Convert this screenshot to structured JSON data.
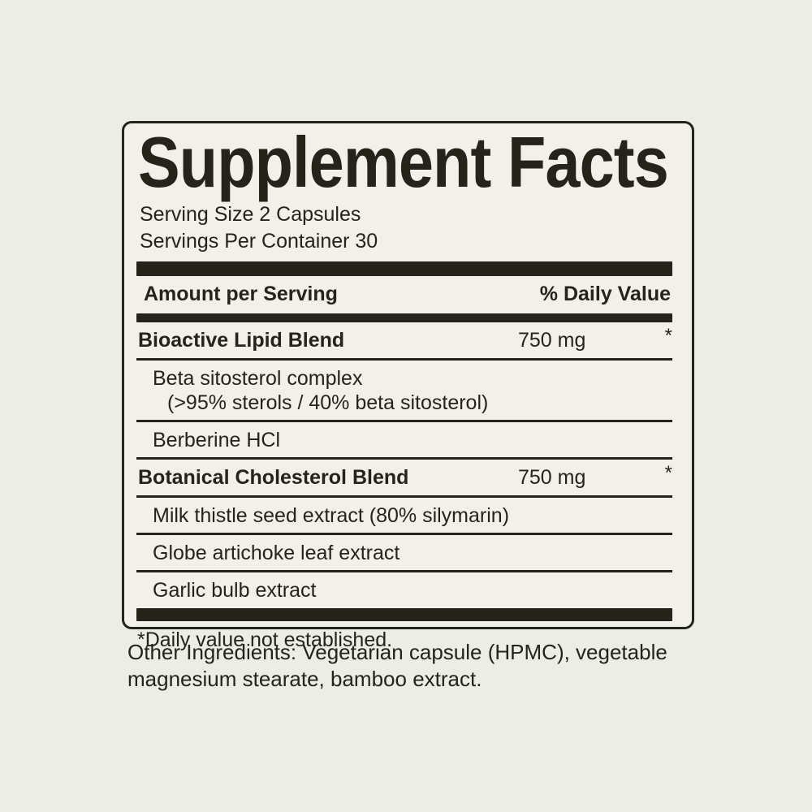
{
  "colors": {
    "page_background": "#ecede4",
    "panel_background": "#f1f1e9",
    "ink": "#24241b"
  },
  "panel": {
    "title": "Supplement Facts",
    "serving_size": "Serving Size 2 Capsules",
    "servings_per_container": "Servings Per Container 30",
    "header": {
      "amount_label": "Amount per Serving",
      "daily_value_label": "% Daily Value"
    },
    "rows": [
      {
        "name": "Bioactive Lipid Blend",
        "amount": "750 mg",
        "daily_value": "*"
      },
      {
        "name": "Beta sitosterol complex",
        "detail": "(>95% sterols / 40% beta sitosterol)"
      },
      {
        "name": "Berberine HCl"
      },
      {
        "name": "Botanical Cholesterol Blend",
        "amount": "750 mg",
        "daily_value": "*"
      },
      {
        "name": "Milk thistle seed extract (80% silymarin)"
      },
      {
        "name": "Globe artichoke leaf extract"
      },
      {
        "name": "Garlic bulb extract"
      }
    ],
    "footnote": "*Daily value not established."
  },
  "other_ingredients": {
    "line1": "Other Ingredients: Vegetarian capsule (HPMC), vegetable",
    "line2": "magnesium stearate, bamboo extract."
  }
}
